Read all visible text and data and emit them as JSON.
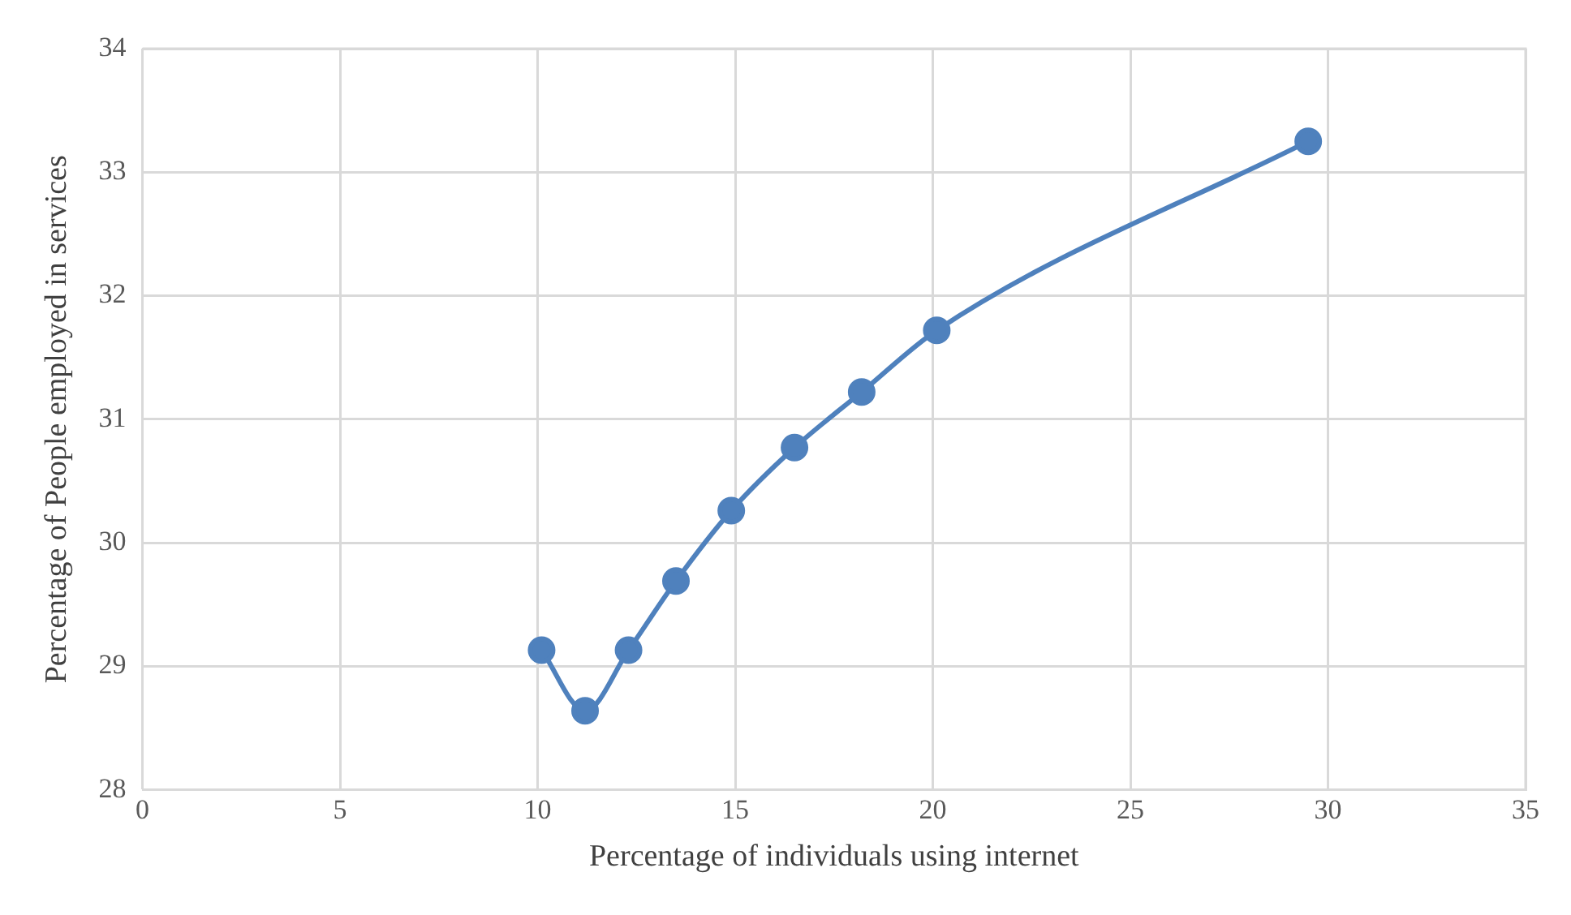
{
  "chart_data": {
    "type": "line",
    "xlabel": "Percentage of individuals using internet",
    "ylabel": "Percentage of People employed in services",
    "x": [
      10.1,
      11.2,
      12.3,
      13.5,
      14.9,
      16.5,
      18.2,
      20.1,
      29.5
    ],
    "series": [
      {
        "color": "#4f81bd",
        "values": [
          29.13,
          28.64,
          29.13,
          29.69,
          30.26,
          30.77,
          31.22,
          31.72,
          33.25
        ]
      }
    ],
    "marker": "circle",
    "xlim": [
      0,
      35
    ],
    "xticks": [
      0,
      5,
      10,
      15,
      20,
      25,
      30,
      35
    ],
    "ylim": [
      28,
      34
    ],
    "yticks": [
      28,
      29,
      30,
      31,
      32,
      33,
      34
    ],
    "grid": true,
    "legend": false
  }
}
